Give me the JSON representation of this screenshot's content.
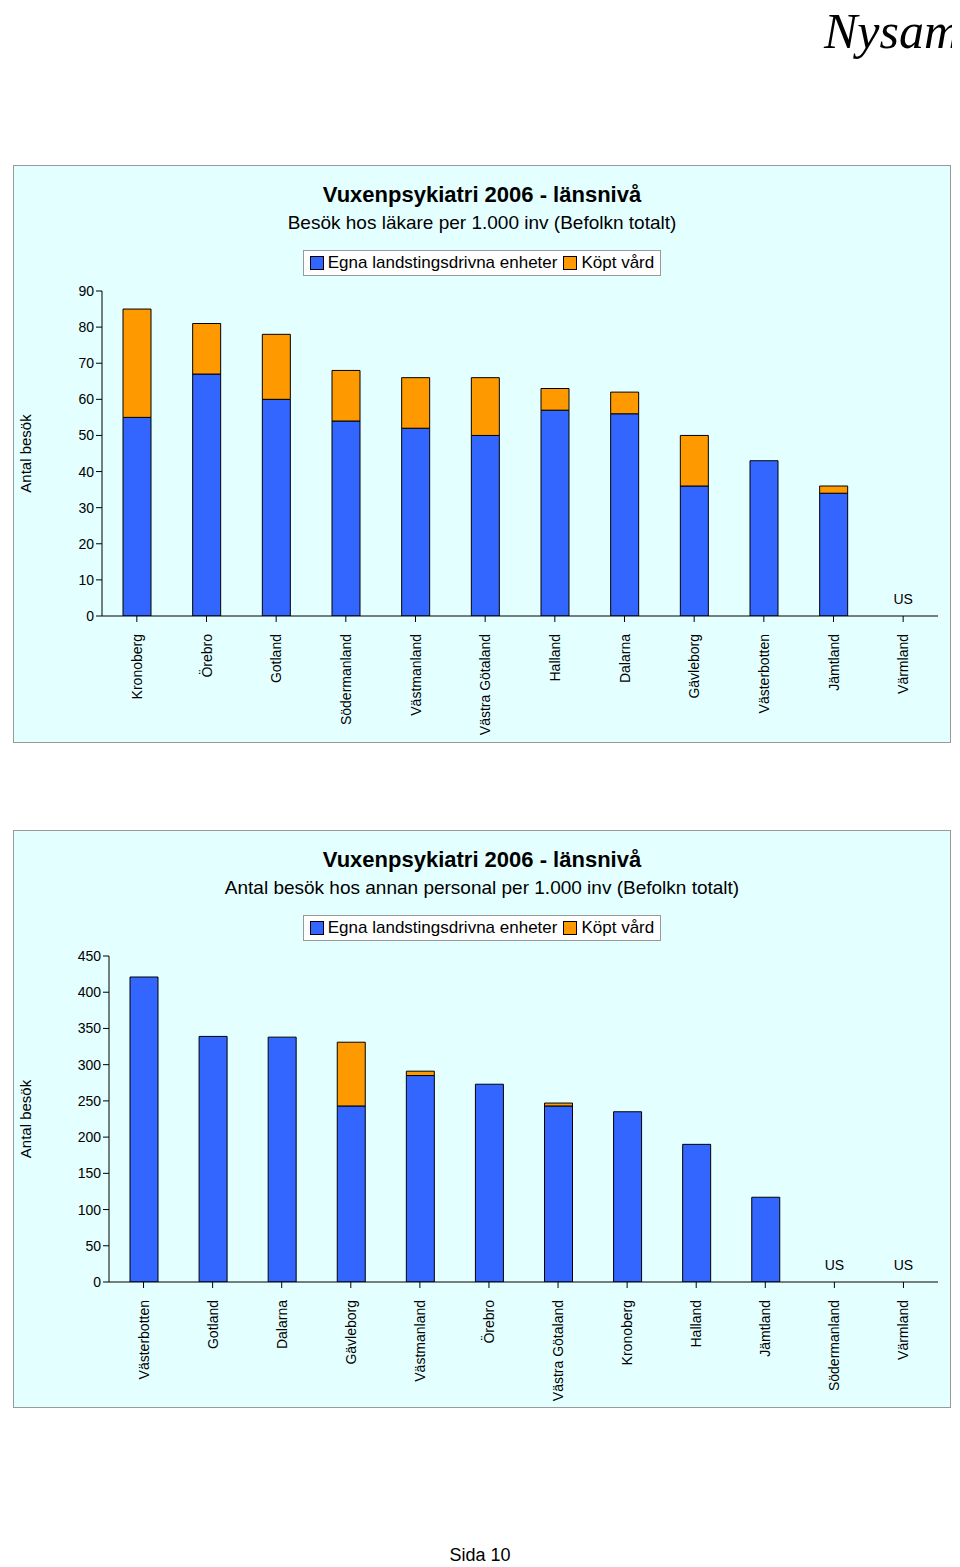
{
  "page": {
    "header": "Nysam",
    "footer": "Sida 10"
  },
  "chart_data": [
    {
      "type": "bar",
      "stacked": true,
      "title": "Vuxenpsykiatri 2006 - länsnivå",
      "subtitle": "Besök hos läkare per 1.000 inv (Befolkn totalt)",
      "y_label": "Antal besök",
      "categories": [
        "Kronoberg",
        "Örebro",
        "Gotland",
        "Södermanland",
        "Västmanland",
        "Västra Götaland",
        "Halland",
        "Dalarna",
        "Gävleborg",
        "Västerbotten",
        "Jämtland",
        "Värmland"
      ],
      "series": [
        {
          "name": "Egna landstingsdrivna enheter",
          "color": "#3366FF",
          "values": [
            55,
            67,
            60,
            54,
            52,
            50,
            57,
            56,
            36,
            43,
            34,
            null
          ]
        },
        {
          "name": "Köpt vård",
          "color": "#FF9900",
          "values": [
            30,
            14,
            18,
            14,
            14,
            16,
            6,
            6,
            14,
            0,
            2,
            null
          ]
        }
      ],
      "annotations": [
        {
          "category": "Värmland",
          "text": "US"
        }
      ],
      "ylim": [
        0,
        90
      ],
      "yticks": [
        0,
        10,
        20,
        30,
        40,
        50,
        60,
        70,
        80,
        90
      ],
      "grid": false,
      "legend": "top"
    },
    {
      "type": "bar",
      "stacked": true,
      "title": "Vuxenpsykiatri 2006 - länsnivå",
      "subtitle": "Antal besök hos annan personal per 1.000 inv (Befolkn totalt)",
      "y_label": "Antal besök",
      "categories": [
        "Västerbotten",
        "Gotland",
        "Dalarna",
        "Gävleborg",
        "Västmanland",
        "Örebro",
        "Västra Götaland",
        "Kronoberg",
        "Halland",
        "Jämtland",
        "Södermanland",
        "Värmland"
      ],
      "series": [
        {
          "name": "Egna landstingsdrivna enheter",
          "color": "#3366FF",
          "values": [
            421,
            339,
            338,
            243,
            285,
            273,
            243,
            235,
            190,
            117,
            null,
            null
          ]
        },
        {
          "name": "Köpt vård",
          "color": "#FF9900",
          "values": [
            0,
            0,
            0,
            88,
            6,
            0,
            4,
            0,
            0,
            0,
            null,
            null
          ]
        }
      ],
      "annotations": [
        {
          "category": "Södermanland",
          "text": "US"
        },
        {
          "category": "Värmland",
          "text": "US"
        }
      ],
      "ylim": [
        0,
        450
      ],
      "yticks": [
        0,
        50,
        100,
        150,
        200,
        250,
        300,
        350,
        400,
        450
      ],
      "grid": false,
      "legend": "top"
    }
  ]
}
